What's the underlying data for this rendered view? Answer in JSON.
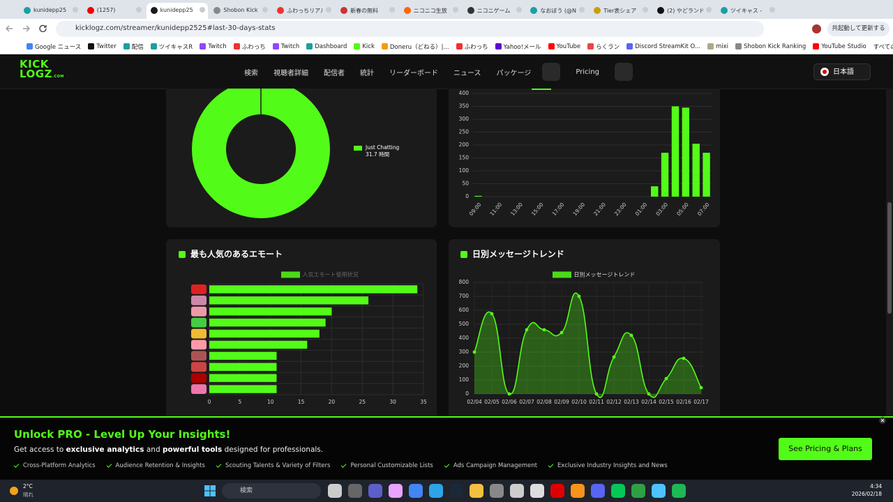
{
  "browser": {
    "tabs": [
      "kunidepp25",
      "(1257)",
      "kunidepp25",
      "Shobon Kick",
      "ふわっちリアル",
      "新春の無料",
      "ニコニコ生放",
      "ニコニゲーム",
      "なおぼう (@N",
      "Tier表シェア",
      "(2) やどランド",
      "ツイキャス -"
    ],
    "active_tab": 2,
    "url": "kicklogz.com/streamer/kunidepp2525#last-30-days-stats",
    "profile_button": "共起動して更新する",
    "bookmarks": [
      "Google ニュース",
      "Twitter",
      "配信",
      "ツイキャスR",
      "Twitch",
      "ふわっち",
      "Twitch",
      "Dashboard",
      "Kick",
      "Doneru（どねる）|...",
      "ふわっち",
      "Yahoo!メール",
      "YouTube",
      "らくラン",
      "Discord StreamKit O...",
      "mixi",
      "Shobon Kick Ranking",
      "YouTube Studio"
    ],
    "all_bookmarks": "すべてのブックマーク"
  },
  "site": {
    "logo_top": "KICK",
    "logo_bottom": "LOGZ",
    "logo_suffix": ".COM",
    "nav": [
      "検索",
      "視聴者詳細",
      "配信者",
      "統計",
      "リーダーボード",
      "ニュース",
      "パッケージ"
    ],
    "pricing": "Pricing",
    "language": "日本語"
  },
  "chart_data": [
    {
      "type": "pie",
      "donut": true,
      "categories": [
        "Just Chatting"
      ],
      "values": [
        31.7
      ],
      "value_labels": [
        "31.7 時間"
      ],
      "colors": [
        "#53fc18"
      ]
    },
    {
      "type": "bar",
      "color": "#53fc18",
      "categories": [
        "09:00",
        null,
        "11:00",
        null,
        "13:00",
        null,
        "15:00",
        null,
        "17:00",
        null,
        "19:00",
        null,
        "21:00",
        null,
        "23:00",
        null,
        "01:00",
        null,
        "03:00",
        null,
        "05:00",
        null,
        "07:00"
      ],
      "values": [
        3,
        0,
        0,
        0,
        0,
        0,
        0,
        0,
        0,
        0,
        0,
        0,
        0,
        0,
        0,
        0,
        0,
        40,
        170,
        350,
        345,
        205,
        170
      ],
      "ylim": [
        0,
        400
      ],
      "yticks": [
        0,
        50,
        100,
        150,
        200,
        250,
        300,
        350,
        400
      ],
      "grid": true
    },
    {
      "type": "hbar",
      "title": "最も人気のあるエモート",
      "categories": [
        null,
        null,
        null,
        null,
        null,
        null,
        null,
        null,
        null,
        null
      ],
      "series": [
        {
          "name": "人気エモート使用状況",
          "color": "#53fc18",
          "values": [
            34,
            26,
            20,
            19,
            18,
            16,
            11,
            11,
            11,
            11
          ]
        }
      ],
      "xlim": [
        0,
        35
      ],
      "xticks": [
        0,
        5,
        10,
        15,
        20,
        25,
        30,
        35
      ],
      "grid": true
    },
    {
      "type": "line",
      "title": "日別メッセージトレンド",
      "x": [
        "02/04",
        "02/05",
        "02/06",
        "02/07",
        "02/08",
        "02/09",
        "02/10",
        "02/11",
        "02/12",
        "02/13",
        "02/14",
        "02/15",
        "02/16",
        "02/17"
      ],
      "series": [
        {
          "name": "日別メッセージトレンド",
          "color": "#53fc18",
          "values": [
            300,
            575,
            0,
            460,
            460,
            440,
            700,
            0,
            265,
            420,
            0,
            110,
            255,
            45
          ]
        }
      ],
      "ylim": [
        0,
        800
      ],
      "yticks": [
        0,
        100,
        200,
        300,
        400,
        500,
        600,
        700,
        800
      ],
      "grid": true,
      "fill": true
    }
  ],
  "banner": {
    "title": "Unlock PRO - Level Up Your Insights!",
    "description": [
      "Get access to ",
      "exclusive analytics",
      " and ",
      "powerful tools",
      " designed for professionals."
    ],
    "features": [
      "Cross-Platform Analytics",
      "Audience Retention & Insights",
      "Scouting Talents & Variety of Filters",
      "Personal Customizable Lists",
      "Ads Campaign Management",
      "Exclusive Industry Insights and News"
    ],
    "button": "See Pricing & Plans"
  },
  "taskbar": {
    "temperature": "2°C",
    "weather": "晴れ",
    "search": "検索",
    "time": "4:34",
    "date": "2026/02/18"
  }
}
